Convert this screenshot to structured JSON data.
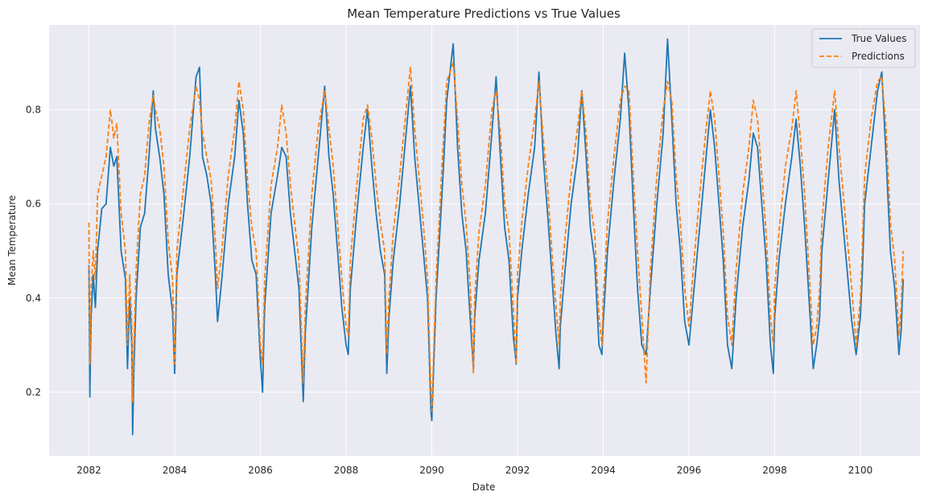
{
  "chart_data": {
    "type": "line",
    "title": "Mean Temperature Predictions vs True Values",
    "xlabel": "Date",
    "ylabel": "Mean Temperature",
    "xlim": [
      2081.07,
      2101.39
    ],
    "ylim": [
      0.065,
      0.98
    ],
    "xticks": [
      2082,
      2084,
      2086,
      2088,
      2090,
      2092,
      2094,
      2096,
      2098,
      2100
    ],
    "xtick_labels": [
      "2082",
      "2084",
      "2086",
      "2088",
      "2090",
      "2092",
      "2094",
      "2096",
      "2098",
      "2100"
    ],
    "yticks": [
      0.2,
      0.4,
      0.6,
      0.8
    ],
    "ytick_labels": [
      "0.2",
      "0.4",
      "0.6",
      "0.8"
    ],
    "grid": true,
    "legend": "top-right",
    "series": [
      {
        "name": "True Values",
        "color": "#1f77b4",
        "style": "solid",
        "x": [
          2082.0,
          2082.02,
          2082.05,
          2082.1,
          2082.15,
          2082.2,
          2082.3,
          2082.4,
          2082.5,
          2082.58,
          2082.65,
          2082.75,
          2082.85,
          2082.9,
          2082.95,
          2083.0,
          2083.02,
          2083.05,
          2083.1,
          2083.2,
          2083.3,
          2083.4,
          2083.5,
          2083.55,
          2083.65,
          2083.75,
          2083.85,
          2083.95,
          2084.0,
          2084.05,
          2084.2,
          2084.35,
          2084.5,
          2084.58,
          2084.65,
          2084.75,
          2084.85,
          2084.95,
          2085.0,
          2085.1,
          2085.25,
          2085.4,
          2085.5,
          2085.6,
          2085.7,
          2085.8,
          2085.9,
          2086.0,
          2086.05,
          2086.1,
          2086.25,
          2086.4,
          2086.5,
          2086.6,
          2086.7,
          2086.8,
          2086.9,
          2087.0,
          2087.05,
          2087.1,
          2087.2,
          2087.35,
          2087.5,
          2087.6,
          2087.7,
          2087.8,
          2087.9,
          2088.0,
          2088.05,
          2088.1,
          2088.25,
          2088.4,
          2088.5,
          2088.6,
          2088.7,
          2088.8,
          2088.9,
          2088.95,
          2089.0,
          2089.1,
          2089.25,
          2089.4,
          2089.5,
          2089.6,
          2089.7,
          2089.8,
          2089.9,
          2089.98,
          2090.0,
          2090.1,
          2090.25,
          2090.35,
          2090.5,
          2090.6,
          2090.7,
          2090.8,
          2090.9,
          2090.97,
          2091.0,
          2091.1,
          2091.25,
          2091.4,
          2091.5,
          2091.6,
          2091.7,
          2091.8,
          2091.9,
          2091.97,
          2092.0,
          2092.1,
          2092.25,
          2092.4,
          2092.5,
          2092.6,
          2092.7,
          2092.8,
          2092.9,
          2092.97,
          2093.0,
          2093.1,
          2093.25,
          2093.4,
          2093.5,
          2093.6,
          2093.7,
          2093.8,
          2093.9,
          2093.97,
          2094.0,
          2094.1,
          2094.25,
          2094.4,
          2094.5,
          2094.6,
          2094.7,
          2094.8,
          2094.9,
          2095.0,
          2095.1,
          2095.25,
          2095.4,
          2095.5,
          2095.6,
          2095.7,
          2095.8,
          2095.9,
          2096.0,
          2096.1,
          2096.25,
          2096.4,
          2096.5,
          2096.6,
          2096.7,
          2096.8,
          2096.9,
          2097.0,
          2097.1,
          2097.25,
          2097.4,
          2097.5,
          2097.6,
          2097.7,
          2097.8,
          2097.9,
          2097.97,
          2098.0,
          2098.1,
          2098.25,
          2098.4,
          2098.5,
          2098.6,
          2098.7,
          2098.8,
          2098.9,
          2098.98,
          2099.05,
          2099.1,
          2099.25,
          2099.4,
          2099.5,
          2099.6,
          2099.7,
          2099.8,
          2099.9,
          2100.0,
          2100.05,
          2100.1,
          2100.25,
          2100.4,
          2100.5,
          2100.6,
          2100.7,
          2100.8,
          2100.9,
          2100.95,
          2101.0
        ],
        "values": [
          0.47,
          0.19,
          0.36,
          0.45,
          0.38,
          0.5,
          0.59,
          0.6,
          0.72,
          0.68,
          0.7,
          0.5,
          0.44,
          0.25,
          0.4,
          0.3,
          0.11,
          0.25,
          0.4,
          0.55,
          0.58,
          0.7,
          0.84,
          0.76,
          0.7,
          0.62,
          0.45,
          0.37,
          0.24,
          0.45,
          0.57,
          0.7,
          0.87,
          0.89,
          0.7,
          0.66,
          0.6,
          0.45,
          0.35,
          0.44,
          0.6,
          0.7,
          0.82,
          0.75,
          0.6,
          0.48,
          0.45,
          0.27,
          0.2,
          0.38,
          0.58,
          0.66,
          0.72,
          0.7,
          0.58,
          0.5,
          0.42,
          0.18,
          0.33,
          0.4,
          0.55,
          0.7,
          0.85,
          0.7,
          0.62,
          0.5,
          0.38,
          0.3,
          0.28,
          0.42,
          0.58,
          0.72,
          0.8,
          0.68,
          0.58,
          0.5,
          0.45,
          0.24,
          0.36,
          0.48,
          0.6,
          0.75,
          0.85,
          0.7,
          0.6,
          0.5,
          0.4,
          0.16,
          0.14,
          0.4,
          0.64,
          0.82,
          0.94,
          0.72,
          0.58,
          0.5,
          0.35,
          0.25,
          0.36,
          0.48,
          0.58,
          0.75,
          0.87,
          0.7,
          0.55,
          0.48,
          0.32,
          0.26,
          0.4,
          0.5,
          0.62,
          0.72,
          0.88,
          0.7,
          0.58,
          0.45,
          0.32,
          0.25,
          0.34,
          0.45,
          0.6,
          0.7,
          0.84,
          0.7,
          0.55,
          0.48,
          0.3,
          0.28,
          0.35,
          0.5,
          0.65,
          0.78,
          0.92,
          0.8,
          0.6,
          0.42,
          0.3,
          0.28,
          0.42,
          0.6,
          0.75,
          0.95,
          0.78,
          0.6,
          0.5,
          0.35,
          0.3,
          0.4,
          0.55,
          0.7,
          0.8,
          0.72,
          0.6,
          0.48,
          0.3,
          0.25,
          0.4,
          0.55,
          0.65,
          0.75,
          0.72,
          0.6,
          0.48,
          0.3,
          0.24,
          0.36,
          0.48,
          0.6,
          0.7,
          0.78,
          0.68,
          0.55,
          0.4,
          0.25,
          0.3,
          0.36,
          0.5,
          0.65,
          0.8,
          0.65,
          0.55,
          0.45,
          0.35,
          0.28,
          0.36,
          0.46,
          0.6,
          0.72,
          0.84,
          0.88,
          0.7,
          0.5,
          0.42,
          0.28,
          0.33,
          0.44
        ]
      },
      {
        "name": "Predictions",
        "color": "#ff7f0e",
        "style": "dashed",
        "x": [
          2082.0,
          2082.02,
          2082.05,
          2082.1,
          2082.15,
          2082.2,
          2082.3,
          2082.4,
          2082.5,
          2082.58,
          2082.65,
          2082.75,
          2082.85,
          2082.9,
          2082.95,
          2083.0,
          2083.02,
          2083.05,
          2083.1,
          2083.2,
          2083.3,
          2083.4,
          2083.5,
          2083.55,
          2083.65,
          2083.75,
          2083.85,
          2083.95,
          2084.0,
          2084.05,
          2084.2,
          2084.35,
          2084.5,
          2084.58,
          2084.65,
          2084.75,
          2084.85,
          2084.95,
          2085.0,
          2085.1,
          2085.25,
          2085.4,
          2085.5,
          2085.6,
          2085.7,
          2085.8,
          2085.9,
          2086.0,
          2086.05,
          2086.1,
          2086.25,
          2086.4,
          2086.5,
          2086.6,
          2086.7,
          2086.8,
          2086.9,
          2087.0,
          2087.05,
          2087.1,
          2087.2,
          2087.35,
          2087.5,
          2087.6,
          2087.7,
          2087.8,
          2087.9,
          2088.0,
          2088.05,
          2088.1,
          2088.25,
          2088.4,
          2088.5,
          2088.6,
          2088.7,
          2088.8,
          2088.9,
          2088.95,
          2089.0,
          2089.1,
          2089.25,
          2089.4,
          2089.5,
          2089.6,
          2089.7,
          2089.8,
          2089.9,
          2089.98,
          2090.0,
          2090.1,
          2090.25,
          2090.35,
          2090.5,
          2090.6,
          2090.7,
          2090.8,
          2090.9,
          2090.97,
          2091.0,
          2091.1,
          2091.25,
          2091.4,
          2091.5,
          2091.6,
          2091.7,
          2091.8,
          2091.9,
          2091.97,
          2092.0,
          2092.1,
          2092.25,
          2092.4,
          2092.5,
          2092.6,
          2092.7,
          2092.8,
          2092.9,
          2092.97,
          2093.0,
          2093.1,
          2093.25,
          2093.4,
          2093.5,
          2093.6,
          2093.7,
          2093.8,
          2093.9,
          2093.97,
          2094.0,
          2094.1,
          2094.25,
          2094.4,
          2094.5,
          2094.6,
          2094.7,
          2094.8,
          2094.9,
          2095.0,
          2095.1,
          2095.25,
          2095.4,
          2095.5,
          2095.6,
          2095.7,
          2095.8,
          2095.9,
          2096.0,
          2096.1,
          2096.25,
          2096.4,
          2096.5,
          2096.6,
          2096.7,
          2096.8,
          2096.9,
          2097.0,
          2097.1,
          2097.25,
          2097.4,
          2097.5,
          2097.6,
          2097.7,
          2097.8,
          2097.9,
          2097.97,
          2098.0,
          2098.1,
          2098.25,
          2098.4,
          2098.5,
          2098.6,
          2098.7,
          2098.8,
          2098.9,
          2098.98,
          2099.05,
          2099.1,
          2099.25,
          2099.4,
          2099.5,
          2099.6,
          2099.7,
          2099.8,
          2099.9,
          2100.0,
          2100.05,
          2100.1,
          2100.25,
          2100.4,
          2100.5,
          2100.6,
          2100.7,
          2100.8,
          2100.9,
          2100.95,
          2101.0
        ],
        "values": [
          0.56,
          0.26,
          0.42,
          0.5,
          0.44,
          0.62,
          0.66,
          0.7,
          0.8,
          0.74,
          0.77,
          0.58,
          0.5,
          0.3,
          0.45,
          0.34,
          0.18,
          0.3,
          0.46,
          0.62,
          0.66,
          0.77,
          0.83,
          0.8,
          0.76,
          0.68,
          0.52,
          0.44,
          0.26,
          0.5,
          0.63,
          0.76,
          0.85,
          0.82,
          0.75,
          0.7,
          0.65,
          0.52,
          0.42,
          0.5,
          0.66,
          0.76,
          0.86,
          0.8,
          0.65,
          0.55,
          0.5,
          0.3,
          0.26,
          0.44,
          0.64,
          0.72,
          0.81,
          0.75,
          0.64,
          0.56,
          0.48,
          0.22,
          0.38,
          0.46,
          0.62,
          0.76,
          0.84,
          0.76,
          0.68,
          0.56,
          0.44,
          0.34,
          0.32,
          0.48,
          0.64,
          0.78,
          0.81,
          0.74,
          0.64,
          0.56,
          0.5,
          0.28,
          0.4,
          0.54,
          0.66,
          0.8,
          0.89,
          0.76,
          0.66,
          0.56,
          0.44,
          0.2,
          0.16,
          0.44,
          0.7,
          0.86,
          0.9,
          0.78,
          0.64,
          0.56,
          0.42,
          0.24,
          0.4,
          0.54,
          0.64,
          0.8,
          0.84,
          0.75,
          0.6,
          0.54,
          0.38,
          0.26,
          0.45,
          0.56,
          0.68,
          0.78,
          0.86,
          0.74,
          0.64,
          0.5,
          0.38,
          0.3,
          0.4,
          0.52,
          0.66,
          0.76,
          0.84,
          0.75,
          0.6,
          0.54,
          0.36,
          0.3,
          0.4,
          0.56,
          0.7,
          0.82,
          0.85,
          0.84,
          0.66,
          0.5,
          0.36,
          0.22,
          0.46,
          0.66,
          0.8,
          0.86,
          0.82,
          0.66,
          0.56,
          0.42,
          0.34,
          0.46,
          0.62,
          0.76,
          0.84,
          0.78,
          0.66,
          0.54,
          0.36,
          0.3,
          0.46,
          0.62,
          0.72,
          0.82,
          0.78,
          0.66,
          0.54,
          0.36,
          0.3,
          0.42,
          0.54,
          0.68,
          0.76,
          0.84,
          0.74,
          0.62,
          0.46,
          0.3,
          0.34,
          0.42,
          0.56,
          0.72,
          0.84,
          0.72,
          0.62,
          0.52,
          0.42,
          0.3,
          0.4,
          0.52,
          0.66,
          0.78,
          0.86,
          0.87,
          0.76,
          0.56,
          0.48,
          0.32,
          0.38,
          0.5
        ]
      }
    ]
  }
}
